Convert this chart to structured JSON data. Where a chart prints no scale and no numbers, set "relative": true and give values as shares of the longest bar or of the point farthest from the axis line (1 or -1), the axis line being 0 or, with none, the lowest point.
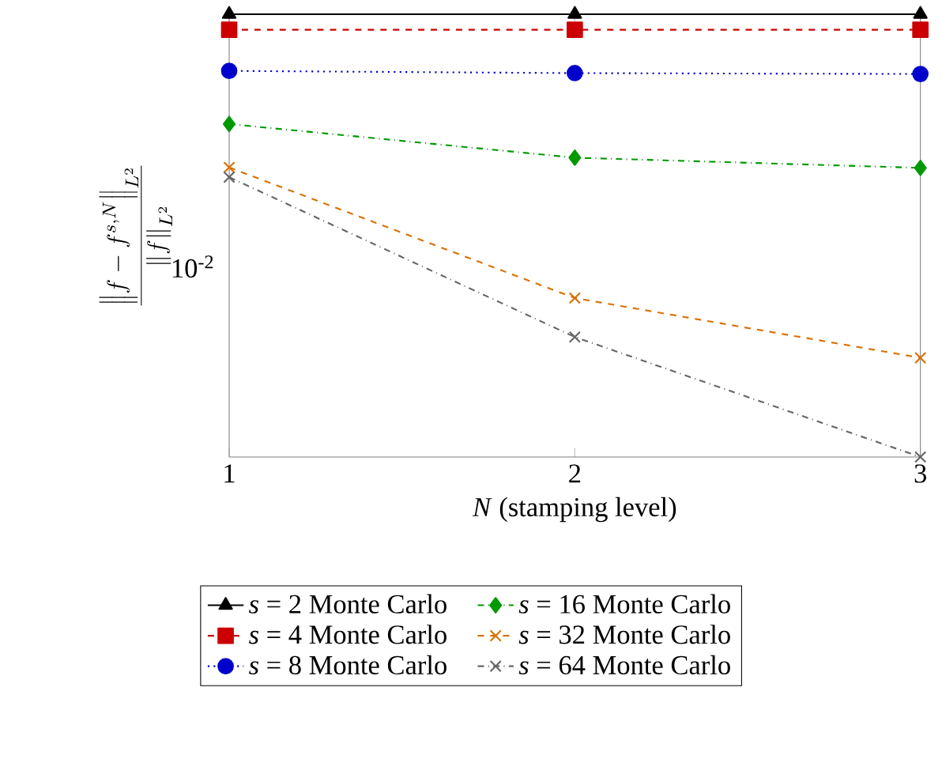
{
  "chart_data": {
    "type": "line",
    "relative": true,
    "xlabel": "*N* (stamping level)",
    "ylabel": "\\frac{\\left\\|f-f^{s,N}\\right\\|_{L^2}}{\\left\\|f\\right\\|_{L^2}}",
    "x": [
      1,
      2,
      3
    ],
    "xlim": [
      1,
      3
    ],
    "xticks": [
      1,
      2,
      3
    ],
    "legend": "bottom",
    "annotations": [
      "10$^{-2}$"
    ],
    "series": [
      {
        "name": "*s* = 2 Monte Carlo",
        "color": "#000000",
        "marker": "triangle",
        "line_style": "solid",
        "values": [
          1,
          1,
          1
        ]
      },
      {
        "name": "*s* = 4 Monte Carlo",
        "color": "#cc0000",
        "marker": "square",
        "line_style": "dashed",
        "values": [
          0.965,
          0.965,
          0.965
        ]
      },
      {
        "name": "*s* = 8 Monte Carlo",
        "color": "#0000cc",
        "marker": "circle",
        "line_style": "dotted",
        "values": [
          0.872,
          0.867,
          0.865
        ]
      },
      {
        "name": "*s* = 16 Monte Carlo",
        "color": "#009900",
        "marker": "diamond",
        "line_style": "dashdot",
        "values": [
          0.752,
          0.676,
          0.653
        ]
      },
      {
        "name": "*s* = 32 Monte Carlo",
        "color": "#d97000",
        "marker": "cross",
        "line_style": "dashed",
        "values": [
          0.654,
          0.359,
          0.224
        ]
      },
      {
        "name": "*s* = 64 Monte Carlo",
        "color": "#666666",
        "marker": "cross",
        "line_style": "dashdot",
        "values": [
          0.632,
          0.271,
          0
        ]
      }
    ]
  }
}
